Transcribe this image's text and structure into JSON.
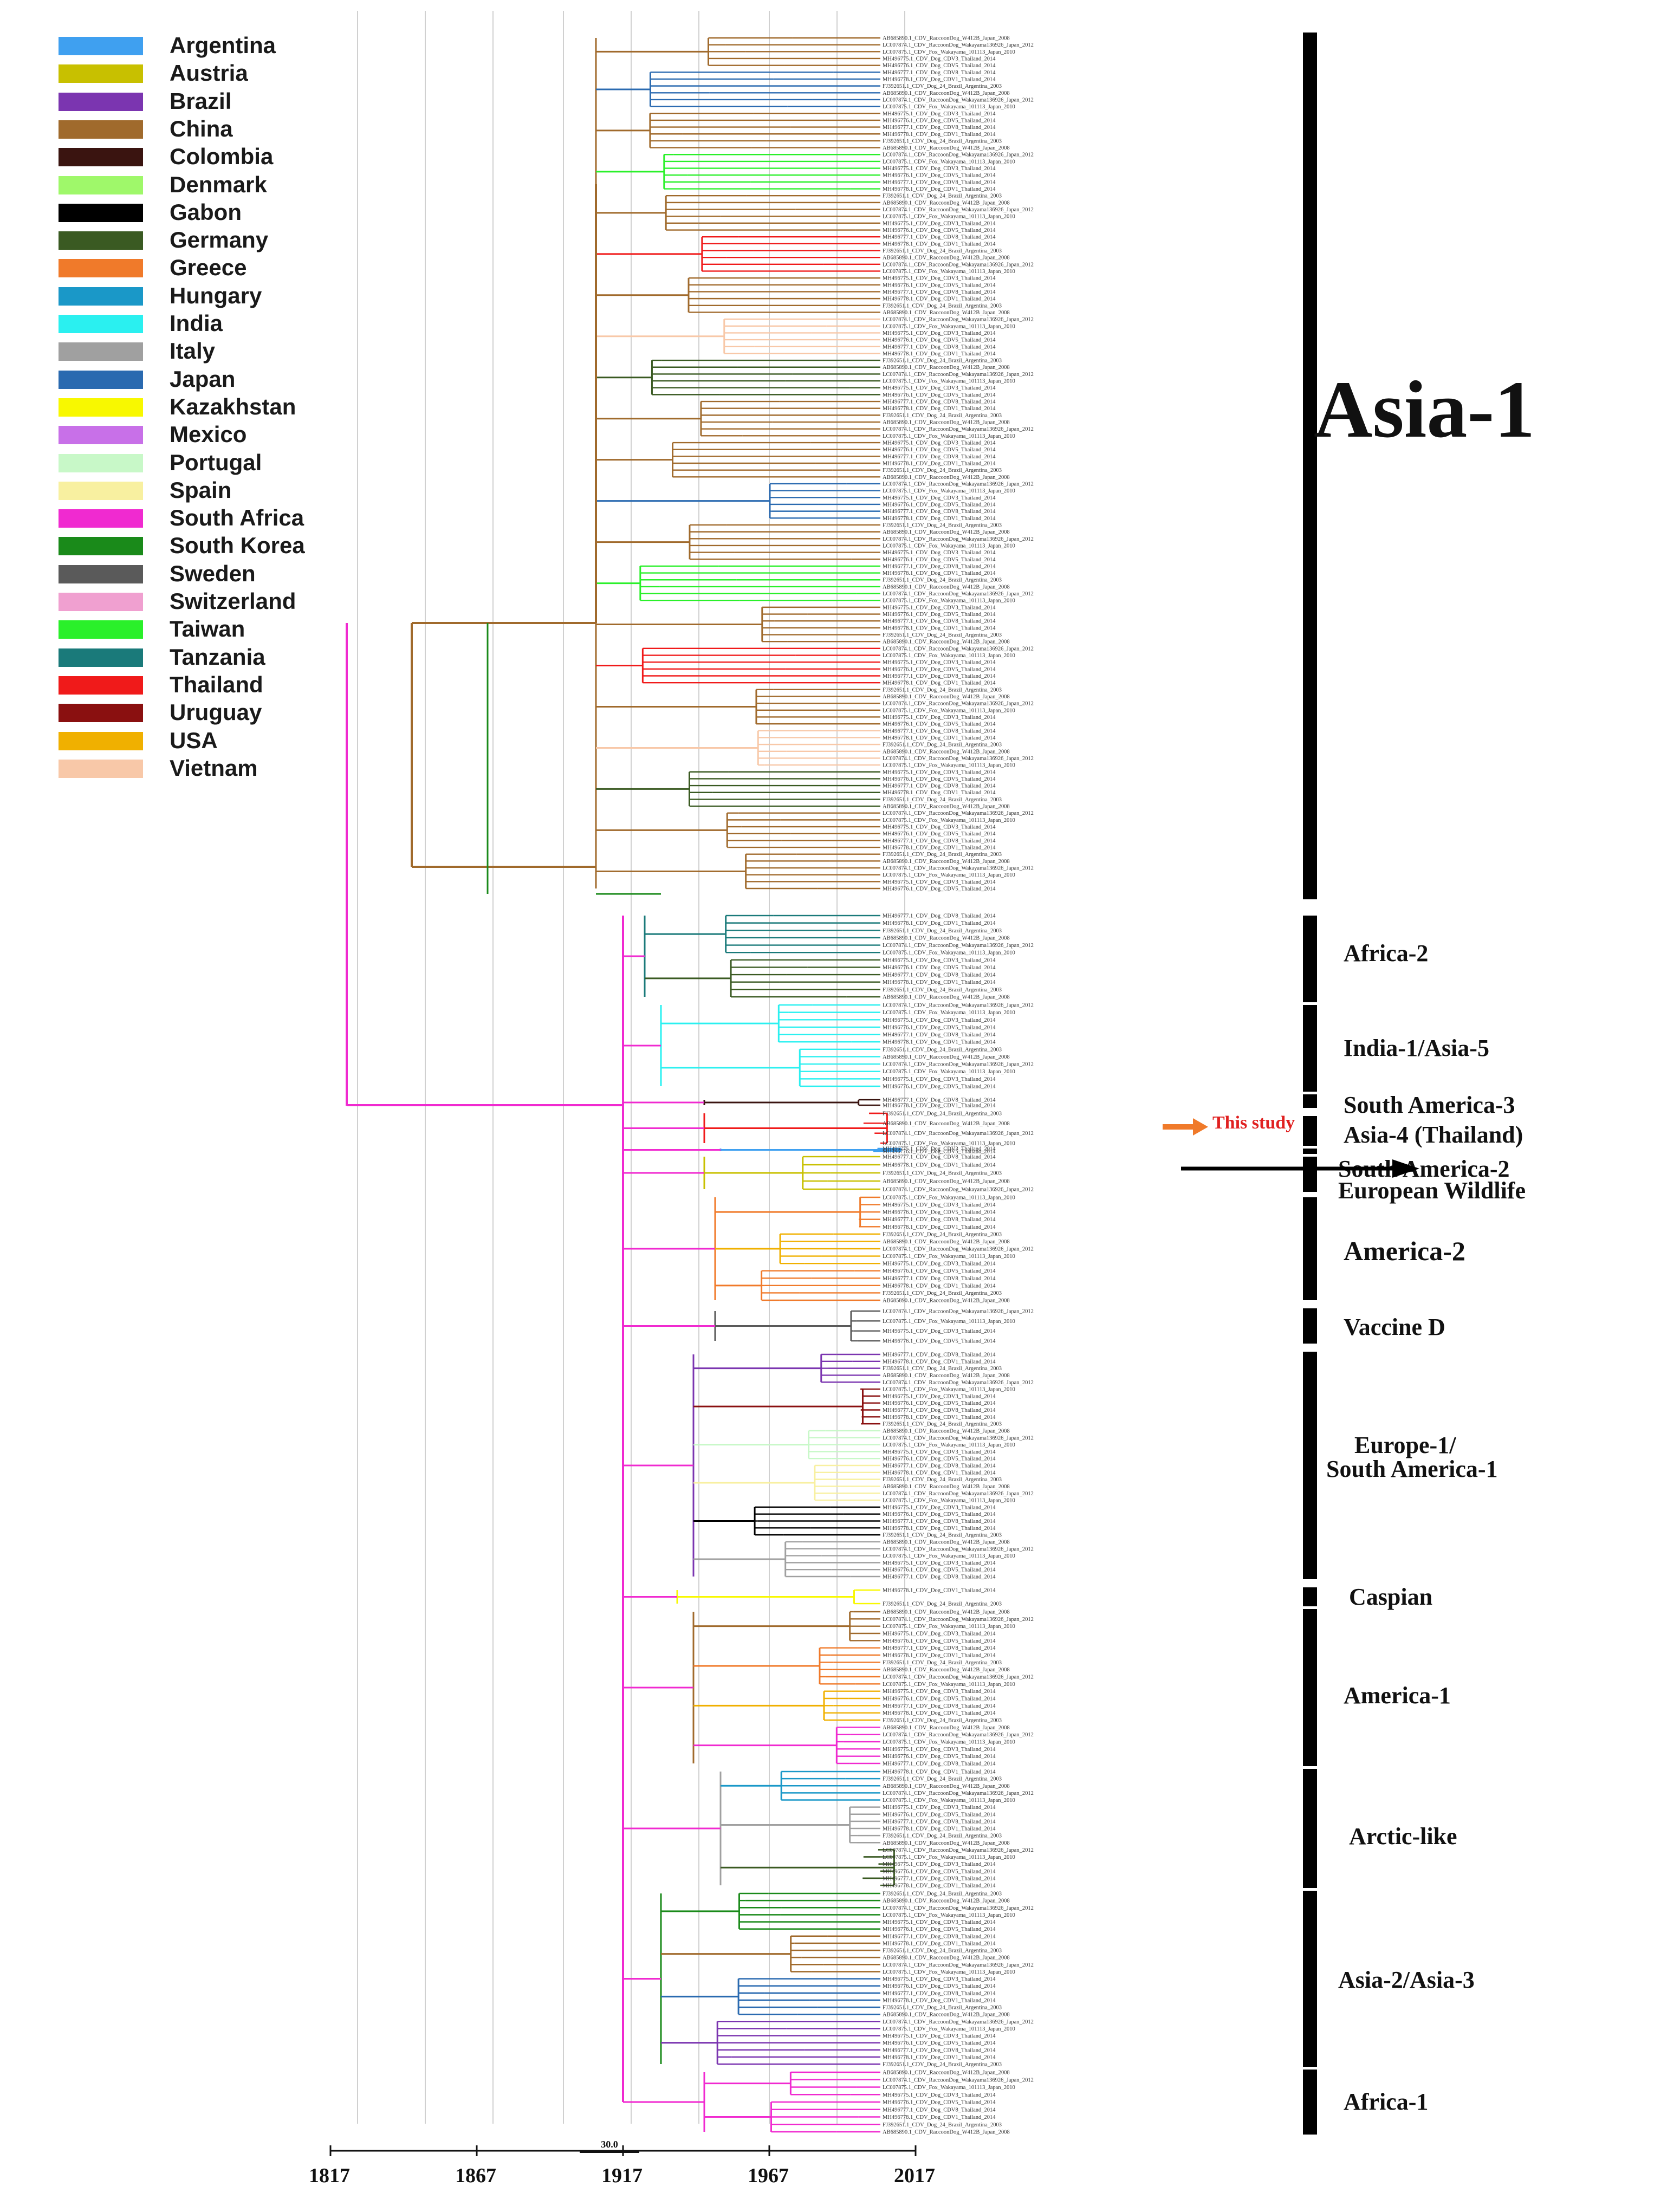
{
  "legend": [
    {
      "name": "Argentina",
      "color": "#3fa0f0"
    },
    {
      "name": "Austria",
      "color": "#c8c000"
    },
    {
      "name": "Brazil",
      "color": "#7b35b0"
    },
    {
      "name": "China",
      "color": "#a06a2c"
    },
    {
      "name": "Colombia",
      "color": "#3a1410"
    },
    {
      "name": "Denmark",
      "color": "#9ff86a"
    },
    {
      "name": "Gabon",
      "color": "#000000"
    },
    {
      "name": "Germany",
      "color": "#3a5a22"
    },
    {
      "name": "Greece",
      "color": "#f07a2a"
    },
    {
      "name": "Hungary",
      "color": "#1a98c8"
    },
    {
      "name": "India",
      "color": "#2af0f0"
    },
    {
      "name": "Italy",
      "color": "#a0a0a0"
    },
    {
      "name": "Japan",
      "color": "#2a6ab0"
    },
    {
      "name": "Kazakhstan",
      "color": "#f8f800"
    },
    {
      "name": "Mexico",
      "color": "#c870e8"
    },
    {
      "name": "Portugal",
      "color": "#c8f8c8"
    },
    {
      "name": "Spain",
      "color": "#f8f0a0"
    },
    {
      "name": "South Africa",
      "color": "#f02ad0"
    },
    {
      "name": "South Korea",
      "color": "#1a8a1a"
    },
    {
      "name": "Sweden",
      "color": "#5a5a5a"
    },
    {
      "name": "Switzerland",
      "color": "#f0a0d0"
    },
    {
      "name": "Taiwan",
      "color": "#2af02a"
    },
    {
      "name": "Tanzania",
      "color": "#1a7a7a"
    },
    {
      "name": "Thailand",
      "color": "#f01a1a"
    },
    {
      "name": "Uruguay",
      "color": "#8a1010"
    },
    {
      "name": "USA",
      "color": "#f0b000"
    },
    {
      "name": "Vietnam",
      "color": "#f8c8a8"
    }
  ],
  "clades": [
    {
      "label": "Asia-1",
      "size": "large"
    },
    {
      "label": "Africa-2"
    },
    {
      "label": "India-1/Asia-5"
    },
    {
      "label": "South America-3"
    },
    {
      "label": "Asia-4 (Thailand)"
    },
    {
      "label": "South America-2"
    },
    {
      "label": "European Wildlife"
    },
    {
      "label": "America-2"
    },
    {
      "label": "Vaccine D"
    },
    {
      "label": "Europe-1/"
    },
    {
      "label": "South America-1"
    },
    {
      "label": "Caspian"
    },
    {
      "label": "America-1"
    },
    {
      "label": "Arctic-like"
    },
    {
      "label": "Asia-2/Asia-3"
    },
    {
      "label": "Africa-1"
    }
  ],
  "annotation": {
    "this_study": "This study"
  },
  "scale_bar": "30.0",
  "axis_years": [
    "1817",
    "1867",
    "1917",
    "1967",
    "2017"
  ],
  "sample_tips": [
    "AB685890.1_CDV_RaccoonDog_W412B_Japan_2008",
    "LC007874.1_CDV_RaccoonDog_Wakayama136926_Japan_2012",
    "LC007875.1_CDV_Fox_Wakayama_101113_Japan_2010",
    "MH496775.1_CDV_Dog_CDV3_Thailand_2014",
    "MH496776.1_CDV_Dog_CDV5_Thailand_2014",
    "MH496777.1_CDV_Dog_CDV8_Thailand_2014",
    "MH496778.1_CDV_Dog_CDV1_Thailand_2014",
    "FJ392651.1_CDV_Dog_24_Brazil_Argentina_2003"
  ]
}
